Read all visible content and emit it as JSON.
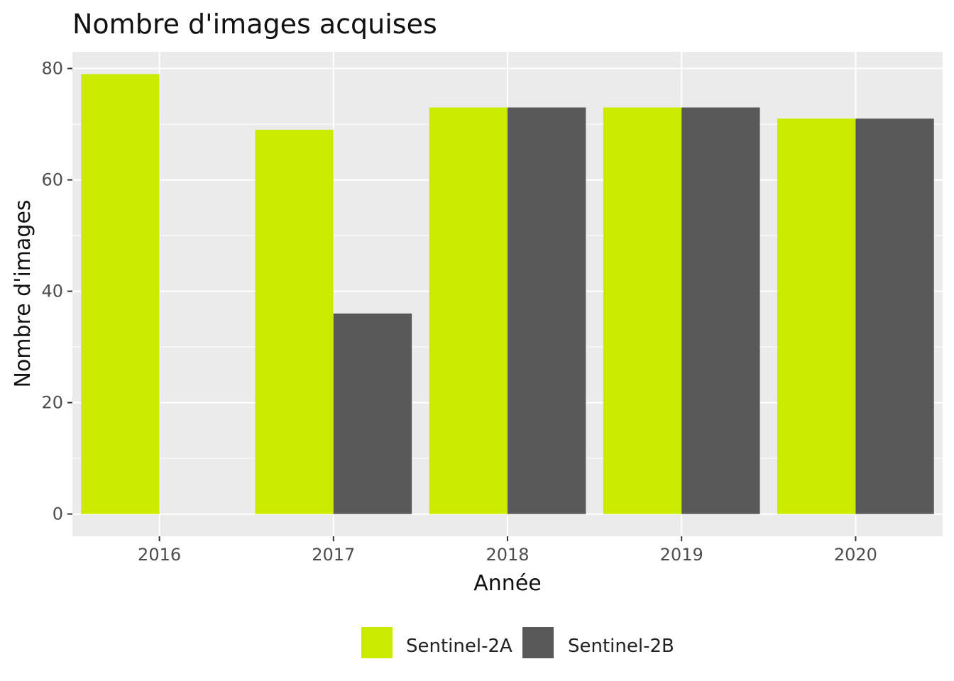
{
  "chart_data": {
    "type": "bar",
    "title": "Nombre d'images acquises",
    "xlabel": "Année",
    "ylabel": "Nombre d'images",
    "categories": [
      "2016",
      "2017",
      "2018",
      "2019",
      "2020"
    ],
    "series": [
      {
        "name": "Sentinel-2A",
        "color": "#cbea00",
        "values": [
          79,
          69,
          73,
          73,
          71
        ]
      },
      {
        "name": "Sentinel-2B",
        "color": "#595959",
        "values": [
          0,
          36,
          73,
          73,
          71
        ]
      }
    ],
    "yticks": [
      0,
      20,
      40,
      60,
      80
    ],
    "ylim": [
      -4,
      83
    ],
    "grid": true,
    "legend_position": "bottom",
    "colors": {
      "panel_background": "#ebebeb",
      "gridline": "#ffffff"
    }
  }
}
